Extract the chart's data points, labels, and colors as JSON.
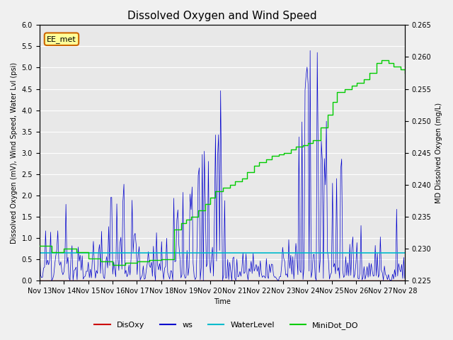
{
  "title": "Dissolved Oxygen and Wind Speed",
  "xlabel": "Time",
  "ylabel_left": "Dissolved Oxygen (mV), Wind Speed, Water Lvl (psi)",
  "ylabel_right": "MD Dissolved Oxygen (mg/L)",
  "annotation": "EE_met",
  "ylim_left": [
    0.0,
    6.0
  ],
  "ylim_right": [
    0.225,
    0.265
  ],
  "xtick_labels": [
    "Nov 13",
    "Nov 14",
    "Nov 15",
    "Nov 16",
    "Nov 17",
    "Nov 18",
    "Nov 19",
    "Nov 20",
    "Nov 21",
    "Nov 22",
    "Nov 23",
    "Nov 24",
    "Nov 25",
    "Nov 26",
    "Nov 27",
    "Nov 28"
  ],
  "colors": {
    "DisOxy": "#cc0000",
    "ws": "#0000cc",
    "WaterLevel": "#00bbcc",
    "MiniDot_DO": "#00cc00"
  },
  "legend_entries": [
    "DisOxy",
    "ws",
    "WaterLevel",
    "MiniDot_DO"
  ],
  "background_color": "#e8e8e8",
  "grid_color": "#ffffff",
  "water_level_value": 0.65,
  "disoxy_value": 0.0,
  "title_fontsize": 11,
  "label_fontsize": 7,
  "tick_fontsize": 7
}
